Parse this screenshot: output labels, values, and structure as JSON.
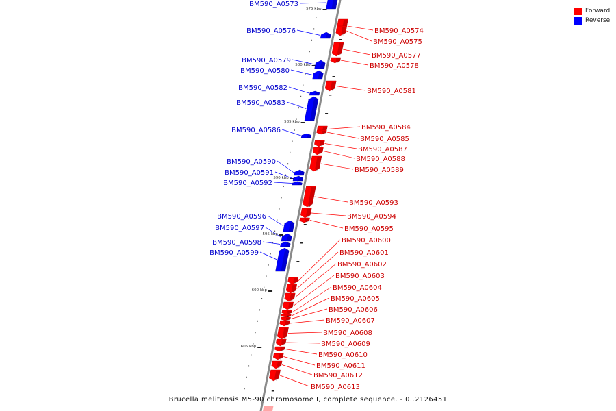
{
  "colors": {
    "forward": "#ff0000",
    "reverse": "#0000ff",
    "axis": "#8a8a8a",
    "tick": "#222222"
  },
  "legend": [
    {
      "label": "Forward",
      "color": "#ff0000"
    },
    {
      "label": "Reverse",
      "color": "#0000ff"
    }
  ],
  "caption": "Brucella melitensis M5-90 chromosome I, complete sequence. - 0..2126451",
  "ticks": [
    "575 kbp",
    "580 kbp",
    "585 kbp",
    "590 kbp",
    "595 kbp",
    "600 kbp",
    "605 kbp"
  ],
  "genes": [
    {
      "label": "BM590_A0573",
      "strand": "reverse"
    },
    {
      "label": "BM590_A0574",
      "strand": "forward"
    },
    {
      "label": "BM590_A0575",
      "strand": "forward"
    },
    {
      "label": "BM590_A0576",
      "strand": "reverse"
    },
    {
      "label": "BM590_A0577",
      "strand": "forward"
    },
    {
      "label": "BM590_A0578",
      "strand": "forward"
    },
    {
      "label": "BM590_A0579",
      "strand": "reverse"
    },
    {
      "label": "BM590_A0580",
      "strand": "reverse"
    },
    {
      "label": "BM590_A0581",
      "strand": "forward"
    },
    {
      "label": "BM590_A0582",
      "strand": "reverse"
    },
    {
      "label": "BM590_A0583",
      "strand": "reverse"
    },
    {
      "label": "BM590_A0584",
      "strand": "forward"
    },
    {
      "label": "BM590_A0585",
      "strand": "forward"
    },
    {
      "label": "BM590_A0586",
      "strand": "reverse"
    },
    {
      "label": "BM590_A0587",
      "strand": "forward"
    },
    {
      "label": "BM590_A0588",
      "strand": "forward"
    },
    {
      "label": "BM590_A0589",
      "strand": "forward"
    },
    {
      "label": "BM590_A0590",
      "strand": "reverse"
    },
    {
      "label": "BM590_A0591",
      "strand": "reverse"
    },
    {
      "label": "BM590_A0592",
      "strand": "reverse"
    },
    {
      "label": "BM590_A0593",
      "strand": "forward"
    },
    {
      "label": "BM590_A0594",
      "strand": "forward"
    },
    {
      "label": "BM590_A0595",
      "strand": "forward"
    },
    {
      "label": "BM590_A0596",
      "strand": "reverse"
    },
    {
      "label": "BM590_A0597",
      "strand": "reverse"
    },
    {
      "label": "BM590_A0598",
      "strand": "reverse"
    },
    {
      "label": "BM590_A0599",
      "strand": "reverse"
    },
    {
      "label": "BM590_A0600",
      "strand": "forward"
    },
    {
      "label": "BM590_A0601",
      "strand": "forward"
    },
    {
      "label": "BM590_A0602",
      "strand": "forward"
    },
    {
      "label": "BM590_A0603",
      "strand": "forward"
    },
    {
      "label": "BM590_A0604",
      "strand": "forward"
    },
    {
      "label": "BM590_A0605",
      "strand": "forward"
    },
    {
      "label": "BM590_A0606",
      "strand": "forward"
    },
    {
      "label": "BM590_A0607",
      "strand": "forward"
    },
    {
      "label": "BM590_A0608",
      "strand": "forward"
    },
    {
      "label": "BM590_A0609",
      "strand": "forward"
    },
    {
      "label": "BM590_A0610",
      "strand": "forward"
    },
    {
      "label": "BM590_A0611",
      "strand": "forward"
    },
    {
      "label": "BM590_A0612",
      "strand": "forward"
    },
    {
      "label": "BM590_A0613",
      "strand": "forward"
    }
  ]
}
